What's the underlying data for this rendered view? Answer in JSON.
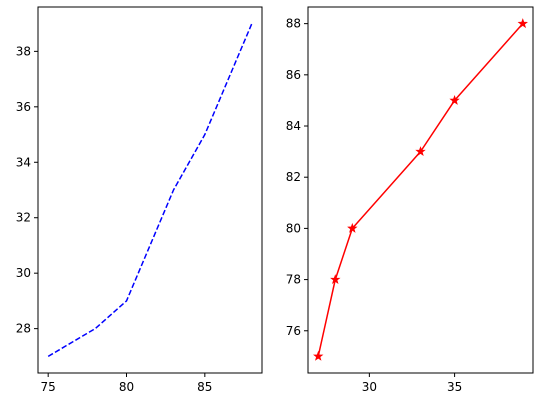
{
  "chart_data": [
    {
      "type": "line",
      "title": "",
      "xlabel": "",
      "ylabel": "",
      "xlim": [
        74.35,
        88.65
      ],
      "ylim": [
        26.4,
        39.6
      ],
      "xticks": [
        75,
        80,
        85
      ],
      "yticks": [
        28,
        30,
        32,
        34,
        36,
        38
      ],
      "series": [
        {
          "x": [
            75,
            78,
            80,
            83,
            85,
            88
          ],
          "y": [
            27,
            28,
            29,
            33,
            35,
            39
          ],
          "color": "#0000ff",
          "linestyle": "dashed",
          "marker": "none"
        }
      ],
      "grid": false,
      "legend": "none"
    },
    {
      "type": "line",
      "title": "",
      "xlabel": "",
      "ylabel": "",
      "xlim": [
        26.4,
        39.6
      ],
      "ylim": [
        74.35,
        88.65
      ],
      "xticks": [
        30,
        35
      ],
      "yticks": [
        76,
        78,
        80,
        82,
        84,
        86,
        88
      ],
      "series": [
        {
          "x": [
            27,
            28,
            29,
            33,
            35,
            39
          ],
          "y": [
            75,
            78,
            80,
            83,
            85,
            88
          ],
          "color": "#ff0000",
          "linestyle": "solid",
          "marker": "star"
        }
      ],
      "grid": false,
      "legend": "none"
    }
  ]
}
